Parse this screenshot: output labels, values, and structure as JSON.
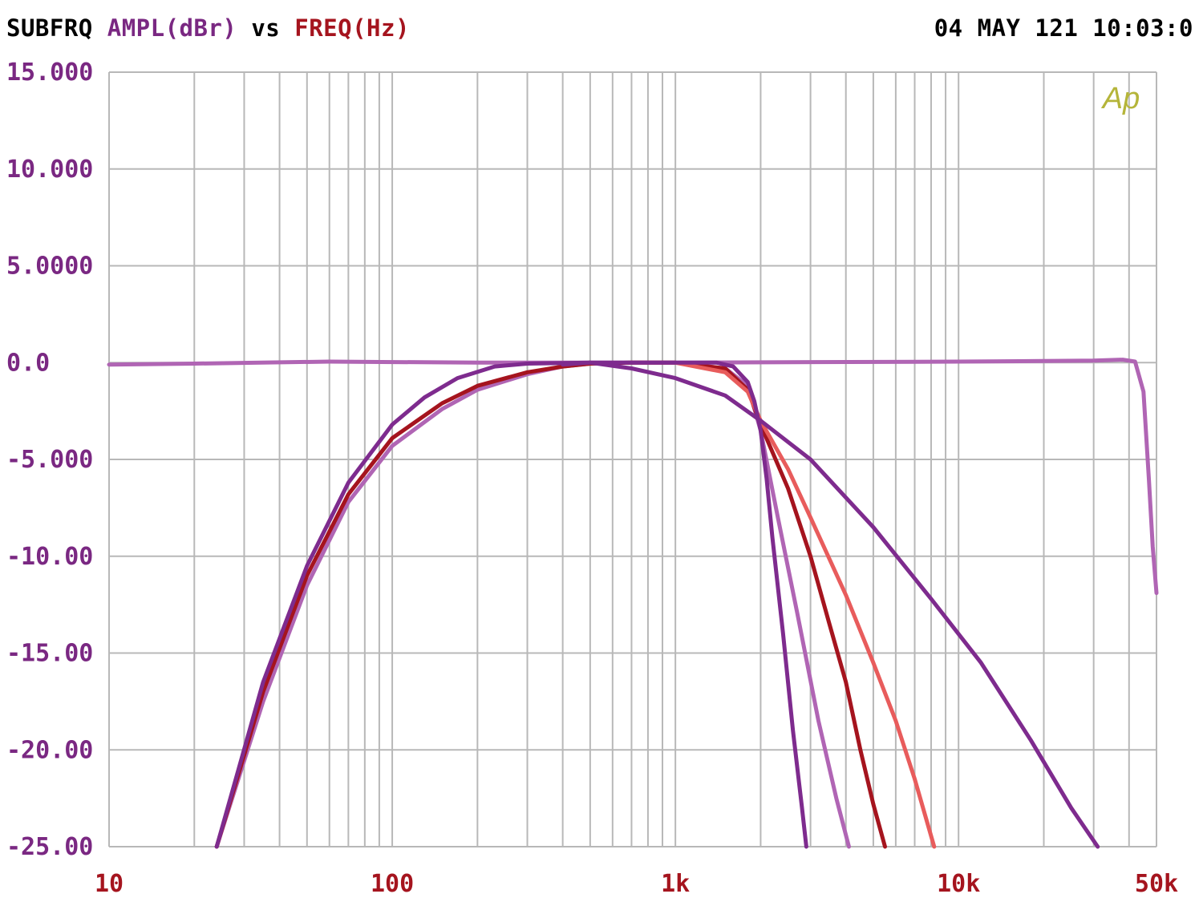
{
  "header": {
    "instrument": "SUBFRQ",
    "y_quantity": "AMPL(dBr)",
    "vs_word": "vs",
    "x_quantity": "FREQ(Hz)",
    "timestamp": "04 MAY 121 10:03:0"
  },
  "logo_text": "Ap",
  "colors": {
    "background": "#ffffff",
    "grid": "#b8b8b8",
    "y_labels": "#7a2882",
    "x_labels": "#a5141e",
    "header_text": "#000000",
    "logo": "#b5b53a"
  },
  "chart_data": {
    "type": "line",
    "xscale": "log",
    "xlim": [
      10,
      50000
    ],
    "ylim": [
      -25,
      15
    ],
    "xlabel": "FREQ(Hz)",
    "ylabel": "AMPL(dBr)",
    "grid": true,
    "legend": "none",
    "x_tick_labels": [
      {
        "value": 10,
        "label": "10"
      },
      {
        "value": 100,
        "label": "100"
      },
      {
        "value": 1000,
        "label": "1k"
      },
      {
        "value": 10000,
        "label": "10k"
      },
      {
        "value": 50000,
        "label": "50k"
      }
    ],
    "y_tick_labels": [
      {
        "value": 15,
        "label": "15.000"
      },
      {
        "value": 10,
        "label": "10.000"
      },
      {
        "value": 5,
        "label": "5.0000"
      },
      {
        "value": 0,
        "label": "0.0"
      },
      {
        "value": -5,
        "label": "-5.000"
      },
      {
        "value": -10,
        "label": "-10.00"
      },
      {
        "value": -15,
        "label": "-15.00"
      },
      {
        "value": -20,
        "label": "-20.00"
      },
      {
        "value": -25,
        "label": "-25.00"
      }
    ],
    "series": [
      {
        "color": "#b065b4",
        "points": [
          [
            10,
            -0.1
          ],
          [
            20,
            -0.05
          ],
          [
            60,
            0.05
          ],
          [
            200,
            0.0
          ],
          [
            1000,
            0.0
          ],
          [
            10000,
            0.05
          ],
          [
            30000,
            0.1
          ],
          [
            38000,
            0.15
          ],
          [
            42000,
            0.05
          ],
          [
            45000,
            -1.5
          ],
          [
            47000,
            -6
          ],
          [
            48500,
            -9.5
          ],
          [
            50000,
            -11.9
          ]
        ]
      },
      {
        "color": "#b065b4",
        "points": [
          [
            24,
            -25
          ],
          [
            35,
            -17.5
          ],
          [
            50,
            -11.5
          ],
          [
            70,
            -7.2
          ],
          [
            100,
            -4.3
          ],
          [
            150,
            -2.4
          ],
          [
            200,
            -1.4
          ],
          [
            300,
            -0.6
          ],
          [
            400,
            -0.2
          ],
          [
            500,
            -0.05
          ],
          [
            700,
            0.0
          ],
          [
            1000,
            0.0
          ],
          [
            1500,
            -0.3
          ],
          [
            1800,
            -1.2
          ],
          [
            2000,
            -3.5
          ],
          [
            2300,
            -8
          ],
          [
            2700,
            -13
          ],
          [
            3200,
            -18.5
          ],
          [
            3700,
            -22.5
          ],
          [
            4100,
            -25
          ]
        ]
      },
      {
        "color": "#a5141e",
        "points": [
          [
            24,
            -25
          ],
          [
            35,
            -17
          ],
          [
            50,
            -11
          ],
          [
            70,
            -6.8
          ],
          [
            100,
            -3.9
          ],
          [
            150,
            -2.1
          ],
          [
            200,
            -1.2
          ],
          [
            300,
            -0.5
          ],
          [
            400,
            -0.2
          ],
          [
            500,
            -0.05
          ],
          [
            700,
            0.0
          ],
          [
            1000,
            0.0
          ],
          [
            1500,
            -0.3
          ],
          [
            1800,
            -1.4
          ],
          [
            2000,
            -3.2
          ],
          [
            2500,
            -6.5
          ],
          [
            3000,
            -10
          ],
          [
            3500,
            -13.5
          ],
          [
            4000,
            -16.5
          ],
          [
            4500,
            -20
          ],
          [
            5000,
            -22.8
          ],
          [
            5500,
            -25
          ]
        ]
      },
      {
        "color": "#e85c5c",
        "points": [
          [
            1000,
            0.0
          ],
          [
            1500,
            -0.5
          ],
          [
            1800,
            -1.5
          ],
          [
            2000,
            -3.0
          ],
          [
            2500,
            -5.5
          ],
          [
            3000,
            -8
          ],
          [
            4000,
            -12
          ],
          [
            5000,
            -15.5
          ],
          [
            6000,
            -18.5
          ],
          [
            7000,
            -21.5
          ],
          [
            8200,
            -25
          ]
        ]
      },
      {
        "color": "#7e2b8e",
        "points": [
          [
            24,
            -25
          ],
          [
            35,
            -16.5
          ],
          [
            50,
            -10.5
          ],
          [
            70,
            -6.2
          ],
          [
            100,
            -3.2
          ],
          [
            130,
            -1.8
          ],
          [
            170,
            -0.8
          ],
          [
            230,
            -0.2
          ],
          [
            300,
            -0.05
          ],
          [
            500,
            0.0
          ],
          [
            1000,
            0.0
          ],
          [
            1400,
            0.0
          ],
          [
            1600,
            -0.2
          ],
          [
            1800,
            -1.0
          ],
          [
            1900,
            -2.0
          ],
          [
            2000,
            -3.5
          ],
          [
            2100,
            -6
          ],
          [
            2200,
            -9
          ],
          [
            2400,
            -14
          ],
          [
            2600,
            -19
          ],
          [
            2800,
            -23
          ],
          [
            2900,
            -25
          ]
        ]
      },
      {
        "color": "#7e2b8e",
        "points": [
          [
            400,
            -0.1
          ],
          [
            500,
            0.0
          ],
          [
            700,
            -0.3
          ],
          [
            1000,
            -0.8
          ],
          [
            1500,
            -1.7
          ],
          [
            2000,
            -3.0
          ],
          [
            3000,
            -5.0
          ],
          [
            5000,
            -8.5
          ],
          [
            8000,
            -12.2
          ],
          [
            12000,
            -15.5
          ],
          [
            18000,
            -19.5
          ],
          [
            25000,
            -23
          ],
          [
            31000,
            -25
          ]
        ]
      }
    ]
  }
}
